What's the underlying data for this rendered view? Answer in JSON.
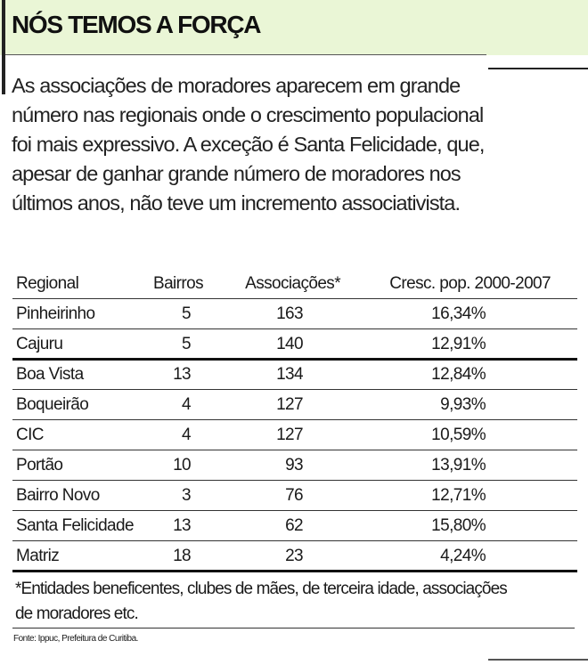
{
  "title": "NÓS TEMOS A FORÇA",
  "intro_lines": [
    "As associações de moradores aparecem em grande",
    "número nas regionais onde o crescimento populacional",
    "foi mais expressivo. A exceção é Santa Felicidade, que,",
    "apesar de ganhar grande número de moradores nos",
    "últimos anos, não teve um incremento associativista."
  ],
  "table": {
    "headers": [
      "Regional",
      "Bairros",
      "Associações*",
      "Cresc. pop. 2000-2007"
    ],
    "rows": [
      [
        "Pinheirinho",
        "5",
        "163",
        "16,34%"
      ],
      [
        "Cajuru",
        "5",
        "140",
        "12,91%"
      ],
      [
        "Boa Vista",
        "13",
        "134",
        "12,84%"
      ],
      [
        "Boqueirão",
        "4",
        "127",
        "9,93%"
      ],
      [
        "CIC",
        "4",
        "127",
        "10,59%"
      ],
      [
        "Portão",
        "10",
        "93",
        "13,91%"
      ],
      [
        "Bairro Novo",
        "3",
        "76",
        "12,71%"
      ],
      [
        "Santa Felicidade",
        "13",
        "62",
        "15,80%"
      ],
      [
        "Matriz",
        "18",
        "23",
        "4,24%"
      ]
    ]
  },
  "footnote_lines": [
    "*Entidades beneficentes, clubes de mães, de terceira idade, associações",
    "de moradores etc."
  ],
  "source": "Fonte: Ippuc, Prefeitura de Curitiba.",
  "colors": {
    "header_band": "#eaf6d6"
  }
}
